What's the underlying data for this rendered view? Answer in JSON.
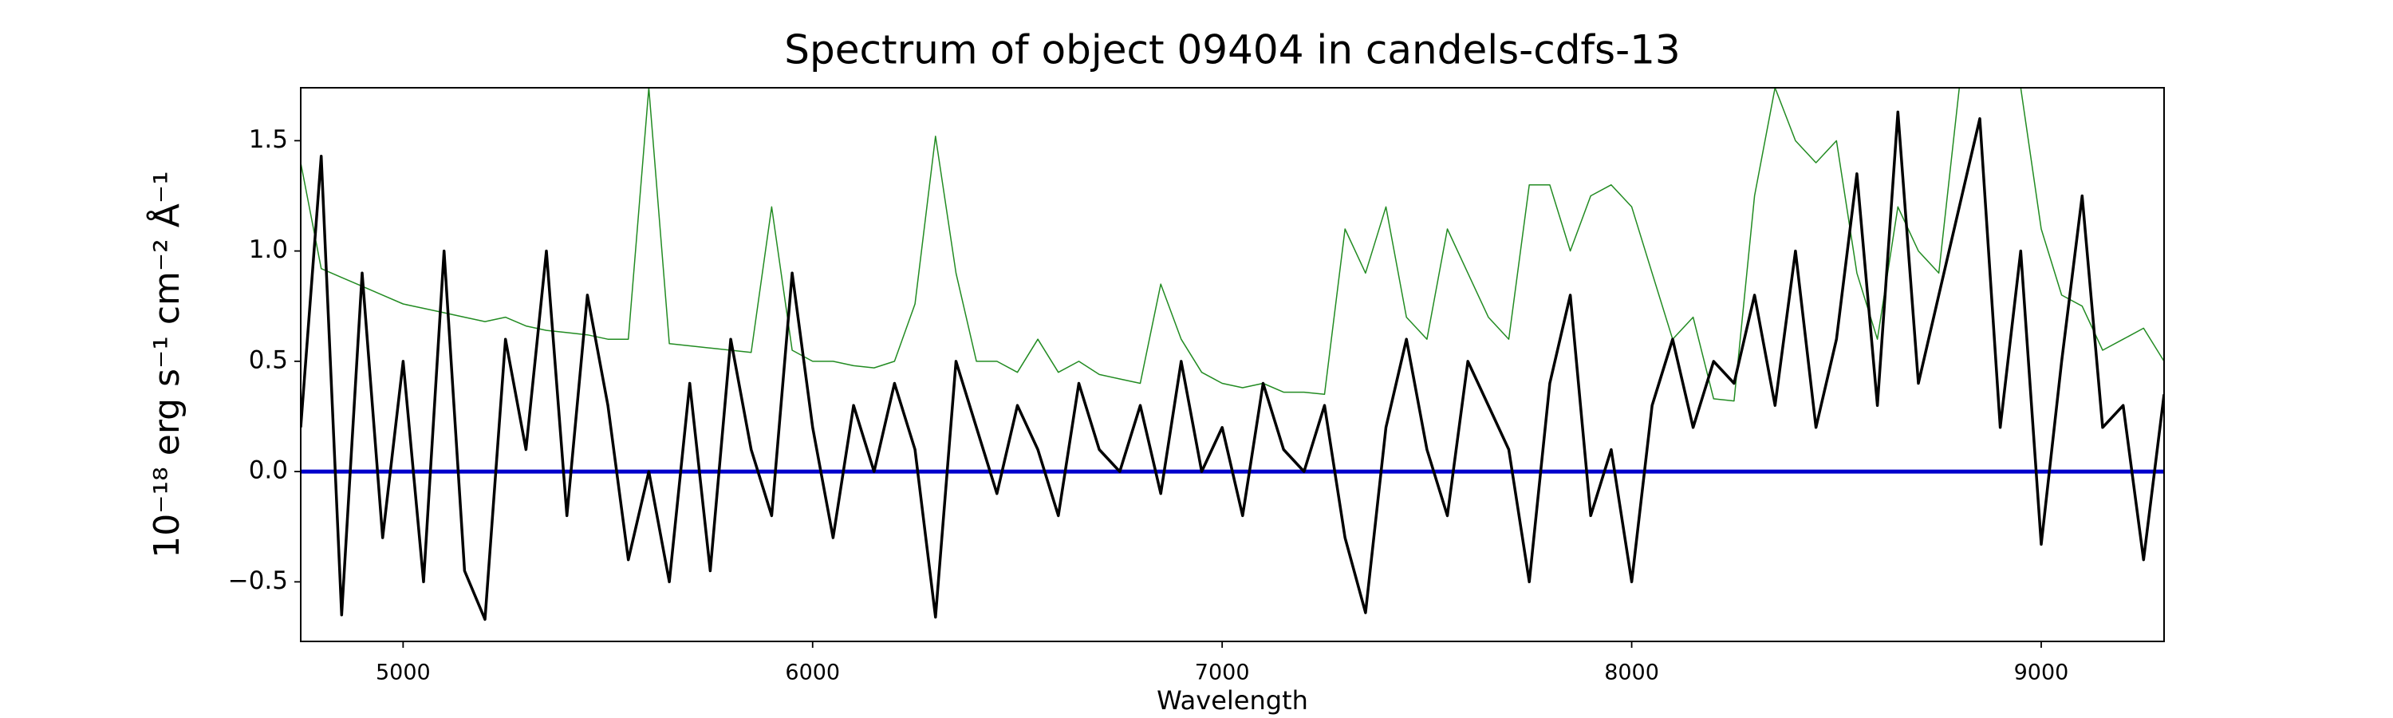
{
  "chart_data": {
    "type": "line",
    "title": "Spectrum of object 09404 in candels-cdfs-13",
    "xlabel": "Wavelength",
    "ylabel": "10⁻¹⁸ erg s⁻¹ cm⁻² Å⁻¹",
    "xlim": [
      4750,
      9300
    ],
    "ylim": [
      -0.77,
      1.74
    ],
    "xticks": [
      5000,
      6000,
      7000,
      8000,
      9000
    ],
    "yticks": [
      {
        "value": -0.5,
        "label": "−0.5"
      },
      {
        "value": 0,
        "label": "0.0"
      },
      0.5,
      {
        "value": 1,
        "label": "1.0"
      },
      1.5
    ],
    "x": [
      4750,
      4800,
      4850,
      4900,
      4950,
      5000,
      5050,
      5100,
      5150,
      5200,
      5250,
      5300,
      5350,
      5400,
      5450,
      5500,
      5550,
      5600,
      5650,
      5700,
      5750,
      5800,
      5850,
      5900,
      5950,
      6000,
      6050,
      6100,
      6150,
      6200,
      6250,
      6300,
      6350,
      6400,
      6450,
      6500,
      6550,
      6600,
      6650,
      6700,
      6750,
      6800,
      6850,
      6900,
      6950,
      7000,
      7050,
      7100,
      7150,
      7200,
      7250,
      7300,
      7350,
      7400,
      7450,
      7500,
      7550,
      7600,
      7650,
      7700,
      7750,
      7800,
      7850,
      7900,
      7950,
      8000,
      8050,
      8100,
      8150,
      8200,
      8250,
      8300,
      8350,
      8400,
      8450,
      8500,
      8550,
      8600,
      8650,
      8700,
      8750,
      8800,
      8850,
      8900,
      8950,
      9000,
      9050,
      9100,
      9150,
      9200,
      9250,
      9300
    ],
    "series": [
      {
        "color": "#228b22",
        "width": 1.5,
        "values": [
          1.4,
          0.92,
          0.88,
          0.84,
          0.8,
          0.76,
          0.74,
          0.72,
          0.7,
          0.68,
          0.7,
          0.66,
          0.64,
          0.63,
          0.62,
          0.6,
          0.6,
          1.74,
          0.58,
          0.57,
          0.56,
          0.55,
          0.54,
          1.2,
          0.55,
          0.5,
          0.5,
          0.48,
          0.47,
          0.5,
          0.76,
          1.52,
          0.9,
          0.5,
          0.5,
          0.45,
          0.6,
          0.45,
          0.5,
          0.44,
          0.42,
          0.4,
          0.85,
          0.6,
          0.45,
          0.4,
          0.38,
          0.4,
          0.36,
          0.36,
          0.35,
          1.1,
          0.9,
          1.2,
          0.7,
          0.6,
          1.1,
          0.9,
          0.7,
          0.6,
          1.3,
          1.3,
          1.0,
          1.25,
          1.3,
          1.2,
          0.9,
          0.6,
          0.7,
          0.33,
          0.32,
          1.25,
          1.74,
          1.5,
          1.4,
          1.5,
          0.9,
          0.6,
          1.2,
          1.0,
          0.9,
          1.74,
          1.74,
          1.74,
          1.74,
          1.1,
          0.8,
          0.75,
          0.55,
          0.6,
          0.65,
          0.5
        ]
      },
      {
        "color": "#0000cc",
        "width": 5,
        "values": [
          0,
          0,
          0,
          0,
          0,
          0,
          0,
          0,
          0,
          0,
          0,
          0,
          0,
          0,
          0,
          0,
          0,
          0,
          0,
          0,
          0,
          0,
          0,
          0,
          0,
          0,
          0,
          0,
          0,
          0,
          0,
          0,
          0,
          0,
          0,
          0,
          0,
          0,
          0,
          0,
          0,
          0,
          0,
          0,
          0,
          0,
          0,
          0,
          0,
          0,
          0,
          0,
          0,
          0,
          0,
          0,
          0,
          0,
          0,
          0,
          0,
          0,
          0,
          0,
          0,
          0,
          0,
          0,
          0,
          0,
          0,
          0,
          0,
          0,
          0,
          0,
          0,
          0,
          0,
          0,
          0,
          0,
          0,
          0,
          0,
          0,
          0,
          0,
          0,
          0,
          0,
          0
        ]
      },
      {
        "color": "#000000",
        "width": 3.5,
        "values": [
          0.2,
          1.43,
          -0.65,
          0.9,
          -0.3,
          0.5,
          -0.5,
          1.0,
          -0.45,
          -0.67,
          0.6,
          0.1,
          1.0,
          -0.2,
          0.8,
          0.3,
          -0.4,
          0.0,
          -0.5,
          0.4,
          -0.45,
          0.6,
          0.1,
          -0.2,
          0.9,
          0.2,
          -0.3,
          0.3,
          0.0,
          0.4,
          0.1,
          -0.66,
          0.5,
          0.2,
          -0.1,
          0.3,
          0.1,
          -0.2,
          0.4,
          0.1,
          0.0,
          0.3,
          -0.1,
          0.5,
          0.0,
          0.2,
          -0.2,
          0.4,
          0.1,
          0.0,
          0.3,
          -0.3,
          -0.64,
          0.2,
          0.6,
          0.1,
          -0.2,
          0.5,
          0.3,
          0.1,
          -0.5,
          0.4,
          0.8,
          -0.2,
          0.1,
          -0.5,
          0.3,
          0.6,
          0.2,
          0.5,
          0.4,
          0.8,
          0.3,
          1.0,
          0.2,
          0.6,
          1.35,
          0.3,
          1.63,
          0.4,
          0.8,
          1.2,
          1.6,
          0.2,
          1.0,
          -0.33,
          0.5,
          1.25,
          0.2,
          0.3,
          -0.4,
          0.35
        ]
      }
    ]
  }
}
